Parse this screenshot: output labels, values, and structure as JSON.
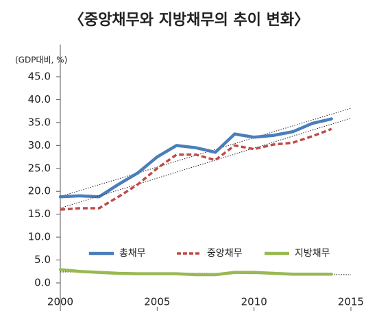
{
  "chart_data": {
    "type": "line",
    "title": "〈중앙채무와 지방채무의 추이 변화〉",
    "y_label": "(GDP대비, %)",
    "x": [
      2000,
      2001,
      2002,
      2003,
      2004,
      2005,
      2006,
      2007,
      2008,
      2009,
      2010,
      2011,
      2012,
      2013,
      2014
    ],
    "series": [
      {
        "name": "총채무",
        "color": "#4a7ebb",
        "dash": false,
        "values": [
          18.8,
          19.0,
          18.8,
          21.5,
          24.0,
          27.5,
          30.0,
          29.5,
          28.5,
          32.5,
          31.8,
          32.2,
          33.0,
          34.8,
          35.8
        ]
      },
      {
        "name": "중앙채무",
        "color": "#be4b48",
        "dash": true,
        "values": [
          16.0,
          16.3,
          16.3,
          18.8,
          21.5,
          25.0,
          28.0,
          28.0,
          26.8,
          30.0,
          29.2,
          30.2,
          30.6,
          32.0,
          33.6
        ]
      },
      {
        "name": "지방채무",
        "color": "#98b954",
        "dash": false,
        "values": [
          2.9,
          2.5,
          2.3,
          2.1,
          2.0,
          2.0,
          2.0,
          1.8,
          1.8,
          2.3,
          2.3,
          2.1,
          1.9,
          1.9,
          1.9
        ]
      }
    ],
    "xlim": [
      2000,
      2015
    ],
    "xticks": [
      2000,
      2005,
      2010,
      2015
    ],
    "ylim": [
      0,
      45
    ],
    "yticks": [
      {
        "value": 0,
        "label": "0.0"
      },
      {
        "value": 5,
        "label": "5.0"
      },
      {
        "value": 10,
        "label": "10.0"
      },
      {
        "value": 15,
        "label": "15.0"
      },
      {
        "value": 20,
        "label": "20.0"
      },
      {
        "value": 25,
        "label": "25.0"
      },
      {
        "value": 30,
        "label": "30.0"
      },
      {
        "value": 35,
        "label": "35.0"
      },
      {
        "value": 40,
        "label": "40.0"
      },
      {
        "value": 45,
        "label": "45.0"
      }
    ],
    "trendline": true,
    "grid": false
  }
}
